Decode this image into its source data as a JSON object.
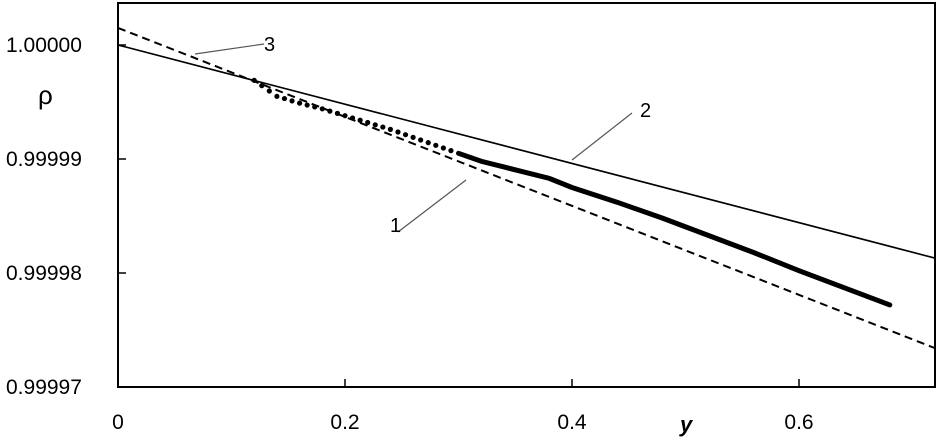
{
  "chart_data": {
    "type": "line",
    "xlabel": "y",
    "ylabel": "ρ",
    "xlim": [
      0,
      0.72
    ],
    "ylim": [
      0.99997,
      1.0000035
    ],
    "x_ticks": [
      0,
      0.2,
      0.4,
      0.6
    ],
    "x_tick_labels": [
      "0",
      "0.2",
      "0.4",
      "0.6"
    ],
    "y_ticks": [
      1.0,
      0.99999,
      0.99998,
      0.99997
    ],
    "y_tick_labels": [
      "1.00000",
      "0.99999",
      "0.99998",
      "0.99997"
    ],
    "grid": false,
    "series": [
      {
        "name": "1",
        "style": "dotted-then-thick",
        "points": [
          [
            0.12,
            0.9999969
          ],
          [
            0.14,
            0.9999955
          ],
          [
            0.16,
            0.9999949
          ],
          [
            0.18,
            0.9999944
          ],
          [
            0.2,
            0.9999938
          ],
          [
            0.22,
            0.9999932
          ],
          [
            0.24,
            0.9999926
          ],
          [
            0.26,
            0.9999919
          ],
          [
            0.28,
            0.9999912
          ],
          [
            0.3,
            0.9999905
          ],
          [
            0.32,
            0.9999898
          ],
          [
            0.34,
            0.9999893
          ],
          [
            0.36,
            0.9999888
          ],
          [
            0.38,
            0.9999883
          ],
          [
            0.4,
            0.9999875
          ],
          [
            0.44,
            0.9999862
          ],
          [
            0.48,
            0.9999848
          ],
          [
            0.52,
            0.9999833
          ],
          [
            0.56,
            0.9999818
          ],
          [
            0.6,
            0.9999802
          ],
          [
            0.64,
            0.9999787
          ],
          [
            0.68,
            0.9999772
          ]
        ]
      },
      {
        "name": "2",
        "style": "solid-thin",
        "points": [
          [
            0,
            1.0
          ],
          [
            0.72,
            0.9999813
          ]
        ]
      },
      {
        "name": "3",
        "style": "dashed",
        "points": [
          [
            0,
            1.0000015
          ],
          [
            0.72,
            0.9999734
          ]
        ]
      }
    ],
    "annotations": [
      {
        "text": "1",
        "target_series": "1"
      },
      {
        "text": "2",
        "target_series": "2"
      },
      {
        "text": "3",
        "target_series": "3"
      }
    ]
  }
}
